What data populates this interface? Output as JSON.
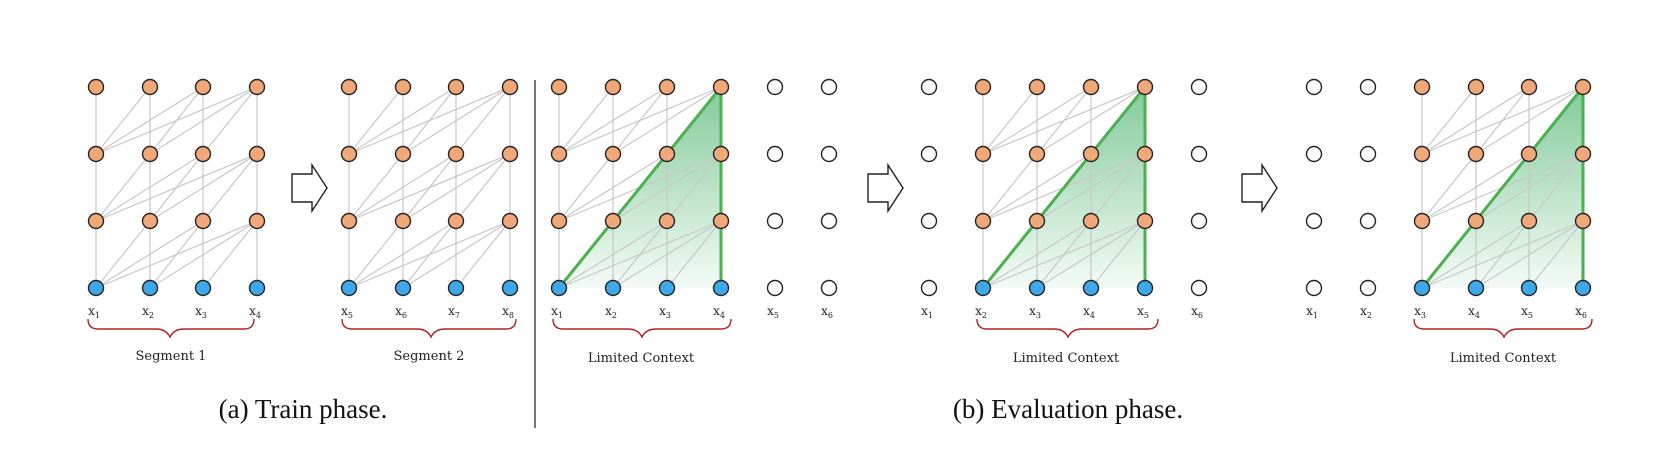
{
  "colors": {
    "hidden_node": "#f0a878",
    "input_node": "#3ea8e8",
    "empty_node": "#ffffff",
    "connection": "#c8c8c8",
    "context_edge": "#4caf50",
    "brace": "#b22222"
  },
  "train": {
    "caption": "(a) Train phase.",
    "segments": [
      {
        "label": "Segment 1",
        "tokens": [
          {
            "base": "x",
            "sub": "1"
          },
          {
            "base": "x",
            "sub": "2"
          },
          {
            "base": "x",
            "sub": "3"
          },
          {
            "base": "x",
            "sub": "4"
          }
        ]
      },
      {
        "label": "Segment 2",
        "tokens": [
          {
            "base": "x",
            "sub": "5"
          },
          {
            "base": "x",
            "sub": "6"
          },
          {
            "base": "x",
            "sub": "7"
          },
          {
            "base": "x",
            "sub": "8"
          }
        ]
      }
    ]
  },
  "evaluation": {
    "caption": "(b) Evaluation phase.",
    "steps": [
      {
        "context_label": "Limited Context",
        "tokens": [
          {
            "base": "x",
            "sub": "1"
          },
          {
            "base": "x",
            "sub": "2"
          },
          {
            "base": "x",
            "sub": "3"
          },
          {
            "base": "x",
            "sub": "4"
          },
          {
            "base": "x",
            "sub": "5"
          },
          {
            "base": "x",
            "sub": "6"
          }
        ],
        "active": [
          1,
          2,
          3,
          4
        ]
      },
      {
        "context_label": "Limited Context",
        "tokens": [
          {
            "base": "x",
            "sub": "1"
          },
          {
            "base": "x",
            "sub": "2"
          },
          {
            "base": "x",
            "sub": "3"
          },
          {
            "base": "x",
            "sub": "4"
          },
          {
            "base": "x",
            "sub": "5"
          },
          {
            "base": "x",
            "sub": "6"
          }
        ],
        "active": [
          2,
          3,
          4,
          5
        ]
      },
      {
        "context_label": "Limited Context",
        "tokens": [
          {
            "base": "x",
            "sub": "1"
          },
          {
            "base": "x",
            "sub": "2"
          },
          {
            "base": "x",
            "sub": "3"
          },
          {
            "base": "x",
            "sub": "4"
          },
          {
            "base": "x",
            "sub": "5"
          },
          {
            "base": "x",
            "sub": "6"
          }
        ],
        "active": [
          3,
          4,
          5,
          6
        ]
      }
    ]
  }
}
